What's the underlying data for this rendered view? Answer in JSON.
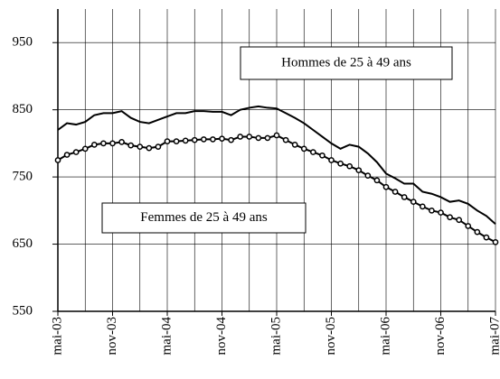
{
  "chart_data": {
    "type": "line",
    "categories": [
      "mai-03",
      null,
      null,
      null,
      null,
      null,
      "nov-03",
      null,
      null,
      null,
      null,
      null,
      "mai-04",
      null,
      null,
      null,
      null,
      null,
      "nov-04",
      null,
      null,
      null,
      null,
      null,
      "mai-05",
      null,
      null,
      null,
      null,
      null,
      "nov-05",
      null,
      null,
      null,
      null,
      null,
      "mai-06",
      null,
      null,
      null,
      null,
      null,
      "nov-06",
      null,
      null,
      null,
      null,
      null,
      "mai-07"
    ],
    "series": [
      {
        "name": "Hommes de 25 à 49 ans",
        "color": "#000000",
        "markers": false,
        "values": [
          820,
          830,
          828,
          832,
          842,
          845,
          845,
          848,
          838,
          832,
          830,
          835,
          840,
          845,
          845,
          848,
          848,
          847,
          847,
          842,
          850,
          853,
          855,
          853,
          852,
          845,
          838,
          830,
          820,
          810,
          800,
          792,
          798,
          795,
          785,
          772,
          755,
          748,
          740,
          740,
          728,
          725,
          720,
          713,
          715,
          710,
          700,
          692,
          680
        ]
      },
      {
        "name": "Femmes de 25 à 49 ans",
        "color": "#000000",
        "markers": true,
        "values": [
          775,
          783,
          787,
          792,
          798,
          800,
          800,
          802,
          797,
          795,
          793,
          795,
          803,
          803,
          804,
          805,
          806,
          806,
          807,
          805,
          810,
          810,
          808,
          808,
          812,
          805,
          798,
          792,
          787,
          782,
          775,
          770,
          766,
          760,
          752,
          745,
          735,
          728,
          720,
          713,
          706,
          700,
          697,
          690,
          686,
          677,
          668,
          660,
          653
        ]
      }
    ],
    "ylim": [
      550,
      1000
    ],
    "yticks": [
      550,
      650,
      750,
      850,
      950
    ],
    "grid": true
  }
}
